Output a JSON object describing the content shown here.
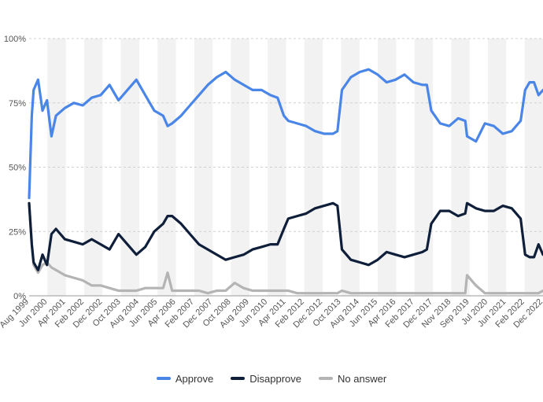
{
  "chart_data": {
    "type": "line",
    "xlabel": "",
    "ylabel": "",
    "ylim": [
      0,
      100
    ],
    "y_ticks": [
      "0%",
      "25%",
      "50%",
      "75%",
      "100%"
    ],
    "x_ticks": [
      "Aug 1999",
      "Jun 2000",
      "Apr 2001",
      "Feb 2002",
      "Dec 2002",
      "Oct 2003",
      "Aug 2004",
      "Jun 2005",
      "Apr 2006",
      "Feb 2007",
      "Dec 2007",
      "Oct 2008",
      "Aug 2009",
      "Jun 2010",
      "Apr 2011",
      "Feb 2012",
      "Dec 2012",
      "Oct 2013",
      "Aug 2014",
      "Jun 2015",
      "Apr 2016",
      "Feb 2017",
      "Dec 2017",
      "Nov 2018",
      "Sep 2019",
      "Jul 2020",
      "Jun 2021",
      "Feb 2022",
      "Dec 2022"
    ],
    "grid": true,
    "legend_position": "bottom",
    "series": [
      {
        "name": "Approve",
        "color": "#4a86e8",
        "points": [
          [
            0,
            38
          ],
          [
            0.3,
            70
          ],
          [
            0.5,
            80
          ],
          [
            1,
            84
          ],
          [
            1.5,
            72
          ],
          [
            2,
            76
          ],
          [
            2.5,
            62
          ],
          [
            3,
            70
          ],
          [
            4,
            73
          ],
          [
            5,
            75
          ],
          [
            6,
            74
          ],
          [
            7,
            77
          ],
          [
            8,
            78
          ],
          [
            9,
            82
          ],
          [
            10,
            76
          ],
          [
            11,
            80
          ],
          [
            12,
            84
          ],
          [
            13,
            78
          ],
          [
            14,
            72
          ],
          [
            15,
            70
          ],
          [
            15.5,
            66
          ],
          [
            16,
            67
          ],
          [
            17,
            70
          ],
          [
            18,
            74
          ],
          [
            19,
            78
          ],
          [
            20,
            82
          ],
          [
            21,
            85
          ],
          [
            22,
            87
          ],
          [
            23,
            84
          ],
          [
            24,
            82
          ],
          [
            25,
            80
          ],
          [
            26,
            80
          ],
          [
            27,
            78
          ],
          [
            27.8,
            77
          ],
          [
            28.5,
            70
          ],
          [
            29,
            68
          ],
          [
            30,
            67
          ],
          [
            31,
            66
          ],
          [
            32,
            64
          ],
          [
            33,
            63
          ],
          [
            34,
            63
          ],
          [
            34.5,
            64
          ],
          [
            35,
            80
          ],
          [
            36,
            85
          ],
          [
            37,
            87
          ],
          [
            38,
            88
          ],
          [
            39,
            86
          ],
          [
            40,
            83
          ],
          [
            41,
            84
          ],
          [
            42,
            86
          ],
          [
            43,
            83
          ],
          [
            44,
            82
          ],
          [
            44.5,
            82
          ],
          [
            45,
            72
          ],
          [
            46,
            67
          ],
          [
            47,
            66
          ],
          [
            48,
            69
          ],
          [
            48.8,
            68
          ],
          [
            49,
            62
          ],
          [
            50,
            60
          ],
          [
            51,
            67
          ],
          [
            52,
            66
          ],
          [
            53,
            63
          ],
          [
            54,
            64
          ],
          [
            55,
            68
          ],
          [
            55.5,
            80
          ],
          [
            56,
            83
          ],
          [
            56.5,
            83
          ],
          [
            57,
            78
          ],
          [
            57.5,
            80
          ]
        ]
      },
      {
        "name": "Disapprove",
        "color": "#0f1f3a",
        "points": [
          [
            0,
            36
          ],
          [
            0.3,
            20
          ],
          [
            0.5,
            13
          ],
          [
            1,
            10
          ],
          [
            1.5,
            16
          ],
          [
            2,
            12
          ],
          [
            2.5,
            24
          ],
          [
            3,
            26
          ],
          [
            4,
            22
          ],
          [
            5,
            21
          ],
          [
            6,
            20
          ],
          [
            7,
            22
          ],
          [
            8,
            20
          ],
          [
            9,
            18
          ],
          [
            10,
            24
          ],
          [
            11,
            20
          ],
          [
            12,
            16
          ],
          [
            13,
            19
          ],
          [
            14,
            25
          ],
          [
            15,
            28
          ],
          [
            15.5,
            31
          ],
          [
            16,
            31
          ],
          [
            17,
            28
          ],
          [
            18,
            24
          ],
          [
            19,
            20
          ],
          [
            20,
            18
          ],
          [
            21,
            16
          ],
          [
            22,
            14
          ],
          [
            23,
            15
          ],
          [
            24,
            16
          ],
          [
            25,
            18
          ],
          [
            26,
            19
          ],
          [
            27,
            20
          ],
          [
            27.8,
            20
          ],
          [
            28.5,
            26
          ],
          [
            29,
            30
          ],
          [
            30,
            31
          ],
          [
            31,
            32
          ],
          [
            32,
            34
          ],
          [
            33,
            35
          ],
          [
            34,
            36
          ],
          [
            34.5,
            35
          ],
          [
            35,
            18
          ],
          [
            36,
            14
          ],
          [
            37,
            13
          ],
          [
            38,
            12
          ],
          [
            39,
            14
          ],
          [
            40,
            17
          ],
          [
            41,
            16
          ],
          [
            42,
            15
          ],
          [
            43,
            16
          ],
          [
            44,
            17
          ],
          [
            44.5,
            18
          ],
          [
            45,
            28
          ],
          [
            46,
            33
          ],
          [
            47,
            33
          ],
          [
            48,
            31
          ],
          [
            48.8,
            32
          ],
          [
            49,
            36
          ],
          [
            50,
            34
          ],
          [
            51,
            33
          ],
          [
            52,
            33
          ],
          [
            53,
            35
          ],
          [
            54,
            34
          ],
          [
            55,
            30
          ],
          [
            55.5,
            16
          ],
          [
            56,
            15
          ],
          [
            56.5,
            15
          ],
          [
            57,
            20
          ],
          [
            57.5,
            16
          ]
        ]
      },
      {
        "name": "No answer",
        "color": "#b4b4b4",
        "points": [
          [
            0,
            36
          ],
          [
            0.3,
            20
          ],
          [
            0.5,
            12
          ],
          [
            1,
            9
          ],
          [
            1.5,
            12
          ],
          [
            2,
            13
          ],
          [
            2.5,
            11
          ],
          [
            3,
            10
          ],
          [
            4,
            8
          ],
          [
            5,
            7
          ],
          [
            6,
            6
          ],
          [
            7,
            4
          ],
          [
            8,
            4
          ],
          [
            9,
            3
          ],
          [
            10,
            2
          ],
          [
            11,
            2
          ],
          [
            12,
            2
          ],
          [
            13,
            3
          ],
          [
            14,
            3
          ],
          [
            15,
            3
          ],
          [
            15.5,
            9
          ],
          [
            16,
            2
          ],
          [
            17,
            2
          ],
          [
            18,
            2
          ],
          [
            19,
            2
          ],
          [
            20,
            1
          ],
          [
            21,
            2
          ],
          [
            22,
            2
          ],
          [
            23,
            5
          ],
          [
            24,
            3
          ],
          [
            25,
            2
          ],
          [
            26,
            2
          ],
          [
            27,
            2
          ],
          [
            27.8,
            2
          ],
          [
            28.5,
            2
          ],
          [
            29,
            2
          ],
          [
            30,
            1
          ],
          [
            31,
            1
          ],
          [
            32,
            1
          ],
          [
            33,
            1
          ],
          [
            34,
            1
          ],
          [
            34.5,
            1
          ],
          [
            35,
            2
          ],
          [
            36,
            1
          ],
          [
            37,
            1
          ],
          [
            38,
            1
          ],
          [
            39,
            1
          ],
          [
            40,
            1
          ],
          [
            41,
            1
          ],
          [
            42,
            1
          ],
          [
            43,
            1
          ],
          [
            44,
            1
          ],
          [
            44.5,
            1
          ],
          [
            45,
            1
          ],
          [
            46,
            1
          ],
          [
            47,
            1
          ],
          [
            48,
            1
          ],
          [
            48.8,
            1
          ],
          [
            49,
            8
          ],
          [
            50,
            4
          ],
          [
            51,
            1
          ],
          [
            52,
            1
          ],
          [
            53,
            1
          ],
          [
            54,
            1
          ],
          [
            55,
            1
          ],
          [
            55.5,
            1
          ],
          [
            56,
            1
          ],
          [
            56.5,
            1
          ],
          [
            57,
            1
          ],
          [
            57.5,
            2
          ]
        ]
      }
    ]
  }
}
